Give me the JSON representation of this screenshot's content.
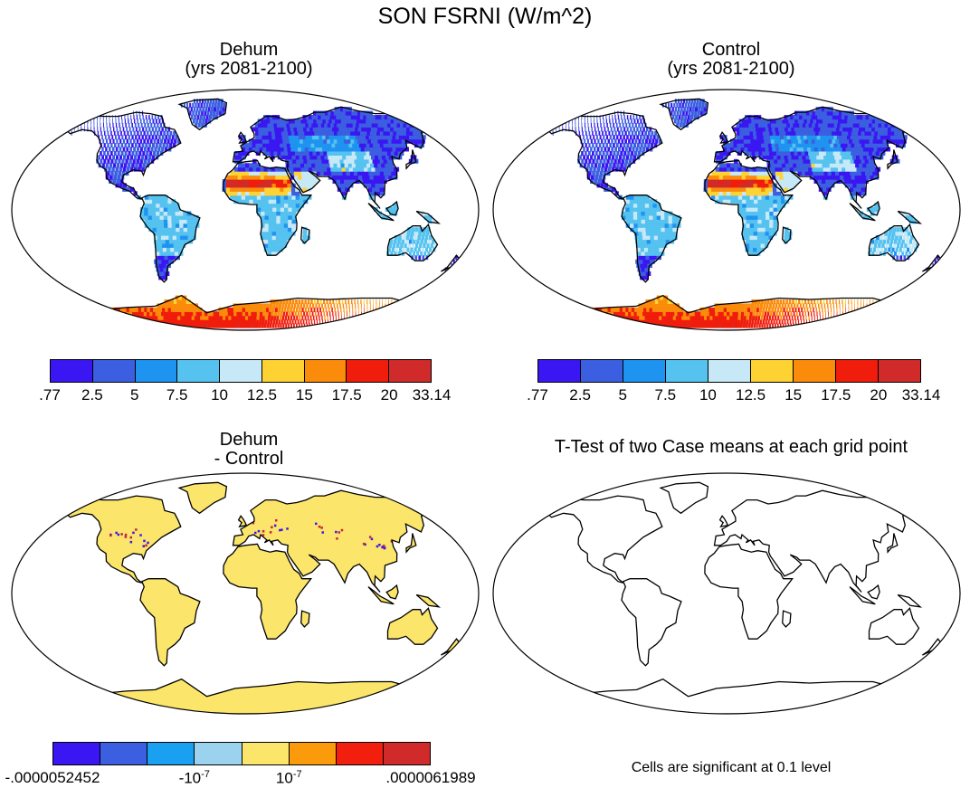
{
  "figure": {
    "title": "SON FSRNI (W/m^2)"
  },
  "panels": {
    "dehum": {
      "title_line1": "Dehum",
      "title_line2": "(yrs 2081-2100)"
    },
    "control": {
      "title_line1": "Control",
      "title_line2": "(yrs 2081-2100)"
    },
    "diff": {
      "title_line1": "Dehum",
      "title_line2": "- Control"
    },
    "ttest": {
      "title": "T-Test of two Case means at each grid point",
      "note": "Cells are significant at 0.1 level"
    }
  },
  "legend_main": {
    "colors": [
      "#3a17f2",
      "#3b5fe0",
      "#1f93f0",
      "#55c2f0",
      "#c6e8f7",
      "#fdd232",
      "#fb8b0a",
      "#f01c0c",
      "#d02a2a"
    ],
    "ticks": [
      ".77",
      "2.5",
      "5",
      "7.5",
      "10",
      "12.5",
      "15",
      "17.5",
      "20",
      "33.14"
    ]
  },
  "legend_diff": {
    "colors": [
      "#3a17f2",
      "#3b5fe0",
      "#1aa0f0",
      "#9bd3ee",
      "#fbe56b",
      "#fb9a0a",
      "#f21e0e",
      "#d02a2a"
    ],
    "ticks": [
      {
        "pos": 0,
        "base": "-.0000052452",
        "exp": ""
      },
      {
        "pos": 3,
        "base": "-10",
        "exp": "-7"
      },
      {
        "pos": 5,
        "base": "10",
        "exp": "-7"
      },
      {
        "pos": 8,
        "base": ".0000061989",
        "exp": ""
      }
    ]
  },
  "colors": {
    "land_diff": "#fbe56b",
    "ocean": "#ffffff",
    "coast": "#000000"
  }
}
